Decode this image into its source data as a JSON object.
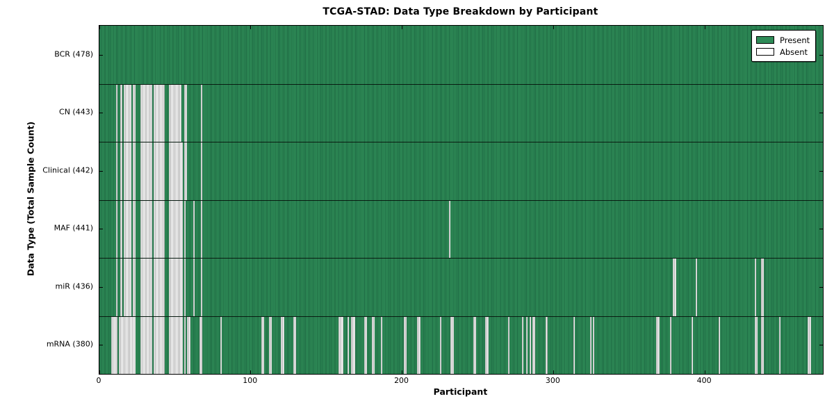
{
  "chart_data": {
    "type": "heatmap",
    "title": "TCGA-STAD: Data Type Breakdown by Participant",
    "xlabel": "Participant",
    "ylabel": "Data Type (Total Sample Count)",
    "xlim": [
      0,
      478
    ],
    "x_ticks": [
      "0",
      "100",
      "200",
      "300",
      "400"
    ],
    "n_participants": 478,
    "grid": false,
    "legend_position": "upper right",
    "colors": {
      "present": "#2e8b57",
      "present_edge": "#1d6842",
      "absent": "#f4f4f4",
      "absent_edge": "#b0b0b0"
    },
    "legend": [
      {
        "label": "Present",
        "color": "#2e8b57"
      },
      {
        "label": "Absent",
        "color": "#ffffff"
      }
    ],
    "rows": [
      {
        "name": "BCR",
        "total": 478,
        "display": "BCR (478)",
        "absent_participants": []
      },
      {
        "name": "CN",
        "total": 443,
        "display": "CN (443)",
        "absent_participants": [
          11,
          14,
          16,
          17,
          18,
          19,
          20,
          22,
          23,
          27,
          28,
          29,
          30,
          31,
          32,
          33,
          34,
          36,
          37,
          38,
          39,
          40,
          41,
          42,
          46,
          47,
          48,
          49,
          50,
          51,
          52,
          53,
          56,
          57,
          67
        ]
      },
      {
        "name": "Clinical",
        "total": 442,
        "display": "Clinical (442)",
        "absent_participants": [
          11,
          14,
          16,
          17,
          18,
          19,
          20,
          22,
          23,
          27,
          28,
          29,
          30,
          31,
          32,
          33,
          34,
          36,
          37,
          38,
          39,
          40,
          41,
          42,
          46,
          47,
          48,
          49,
          50,
          51,
          52,
          53,
          54,
          56,
          57,
          67
        ]
      },
      {
        "name": "MAF",
        "total": 441,
        "display": "MAF (441)",
        "absent_participants": [
          11,
          14,
          16,
          17,
          18,
          19,
          20,
          22,
          23,
          27,
          28,
          29,
          30,
          31,
          32,
          33,
          34,
          36,
          37,
          38,
          39,
          40,
          41,
          42,
          46,
          47,
          48,
          49,
          50,
          51,
          52,
          53,
          54,
          56,
          62,
          67,
          231
        ]
      },
      {
        "name": "miR",
        "total": 436,
        "display": "miR (436)",
        "absent_participants": [
          11,
          14,
          16,
          17,
          18,
          19,
          20,
          22,
          23,
          27,
          28,
          29,
          30,
          31,
          32,
          33,
          34,
          36,
          37,
          38,
          39,
          40,
          41,
          42,
          46,
          47,
          48,
          49,
          50,
          51,
          52,
          53,
          54,
          56,
          62,
          67,
          379,
          380,
          394,
          433,
          437,
          438
        ]
      },
      {
        "name": "mRNA",
        "total": 380,
        "display": "mRNA (380)",
        "absent_participants": [
          8,
          9,
          10,
          11,
          13,
          14,
          15,
          16,
          17,
          18,
          19,
          20,
          21,
          22,
          23,
          27,
          28,
          29,
          30,
          31,
          32,
          33,
          34,
          36,
          37,
          38,
          39,
          40,
          41,
          42,
          46,
          47,
          48,
          49,
          50,
          51,
          52,
          53,
          54,
          56,
          58,
          59,
          66,
          67,
          80,
          107,
          108,
          112,
          113,
          120,
          121,
          128,
          129,
          158,
          159,
          160,
          164,
          166,
          167,
          168,
          175,
          176,
          180,
          181,
          186,
          201,
          202,
          210,
          211,
          225,
          232,
          233,
          247,
          248,
          255,
          256,
          270,
          279,
          282,
          284,
          286,
          287,
          295,
          313,
          324,
          326,
          368,
          369,
          377,
          391,
          409,
          433,
          434,
          437,
          438,
          449,
          468,
          469
        ]
      }
    ]
  }
}
